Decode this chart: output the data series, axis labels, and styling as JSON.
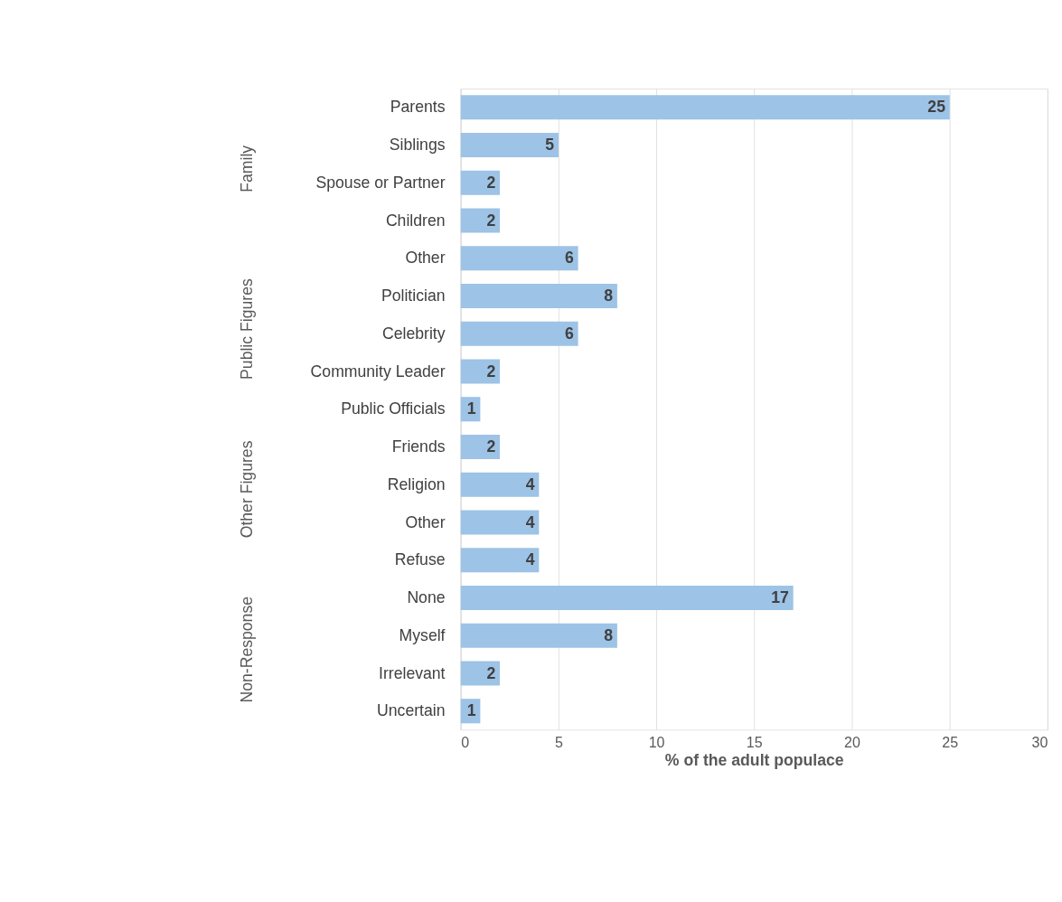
{
  "chart_data": {
    "type": "bar",
    "orientation": "horizontal",
    "xlabel": "% of the adult populace",
    "categories": [
      "Parents",
      "Siblings",
      "Spouse or Partner",
      "Children",
      "Other",
      "Politician",
      "Celebrity",
      "Community Leader",
      "Public Officials",
      "Friends",
      "Religion",
      "Other",
      "Refuse",
      "None",
      "Myself",
      "Irrelevant",
      "Uncertain"
    ],
    "values": [
      25,
      5,
      2,
      2,
      6,
      8,
      6,
      2,
      1,
      2,
      4,
      4,
      4,
      17,
      8,
      2,
      1
    ],
    "color": "#9dc3e6",
    "data_labels": true,
    "grid": "x",
    "xlim": [
      0,
      30
    ],
    "xticks": [
      0,
      5,
      10,
      15,
      20,
      25,
      30
    ],
    "annotations": [
      "Family",
      "Public Figures",
      "Other Figures",
      "Non-Response"
    ]
  }
}
